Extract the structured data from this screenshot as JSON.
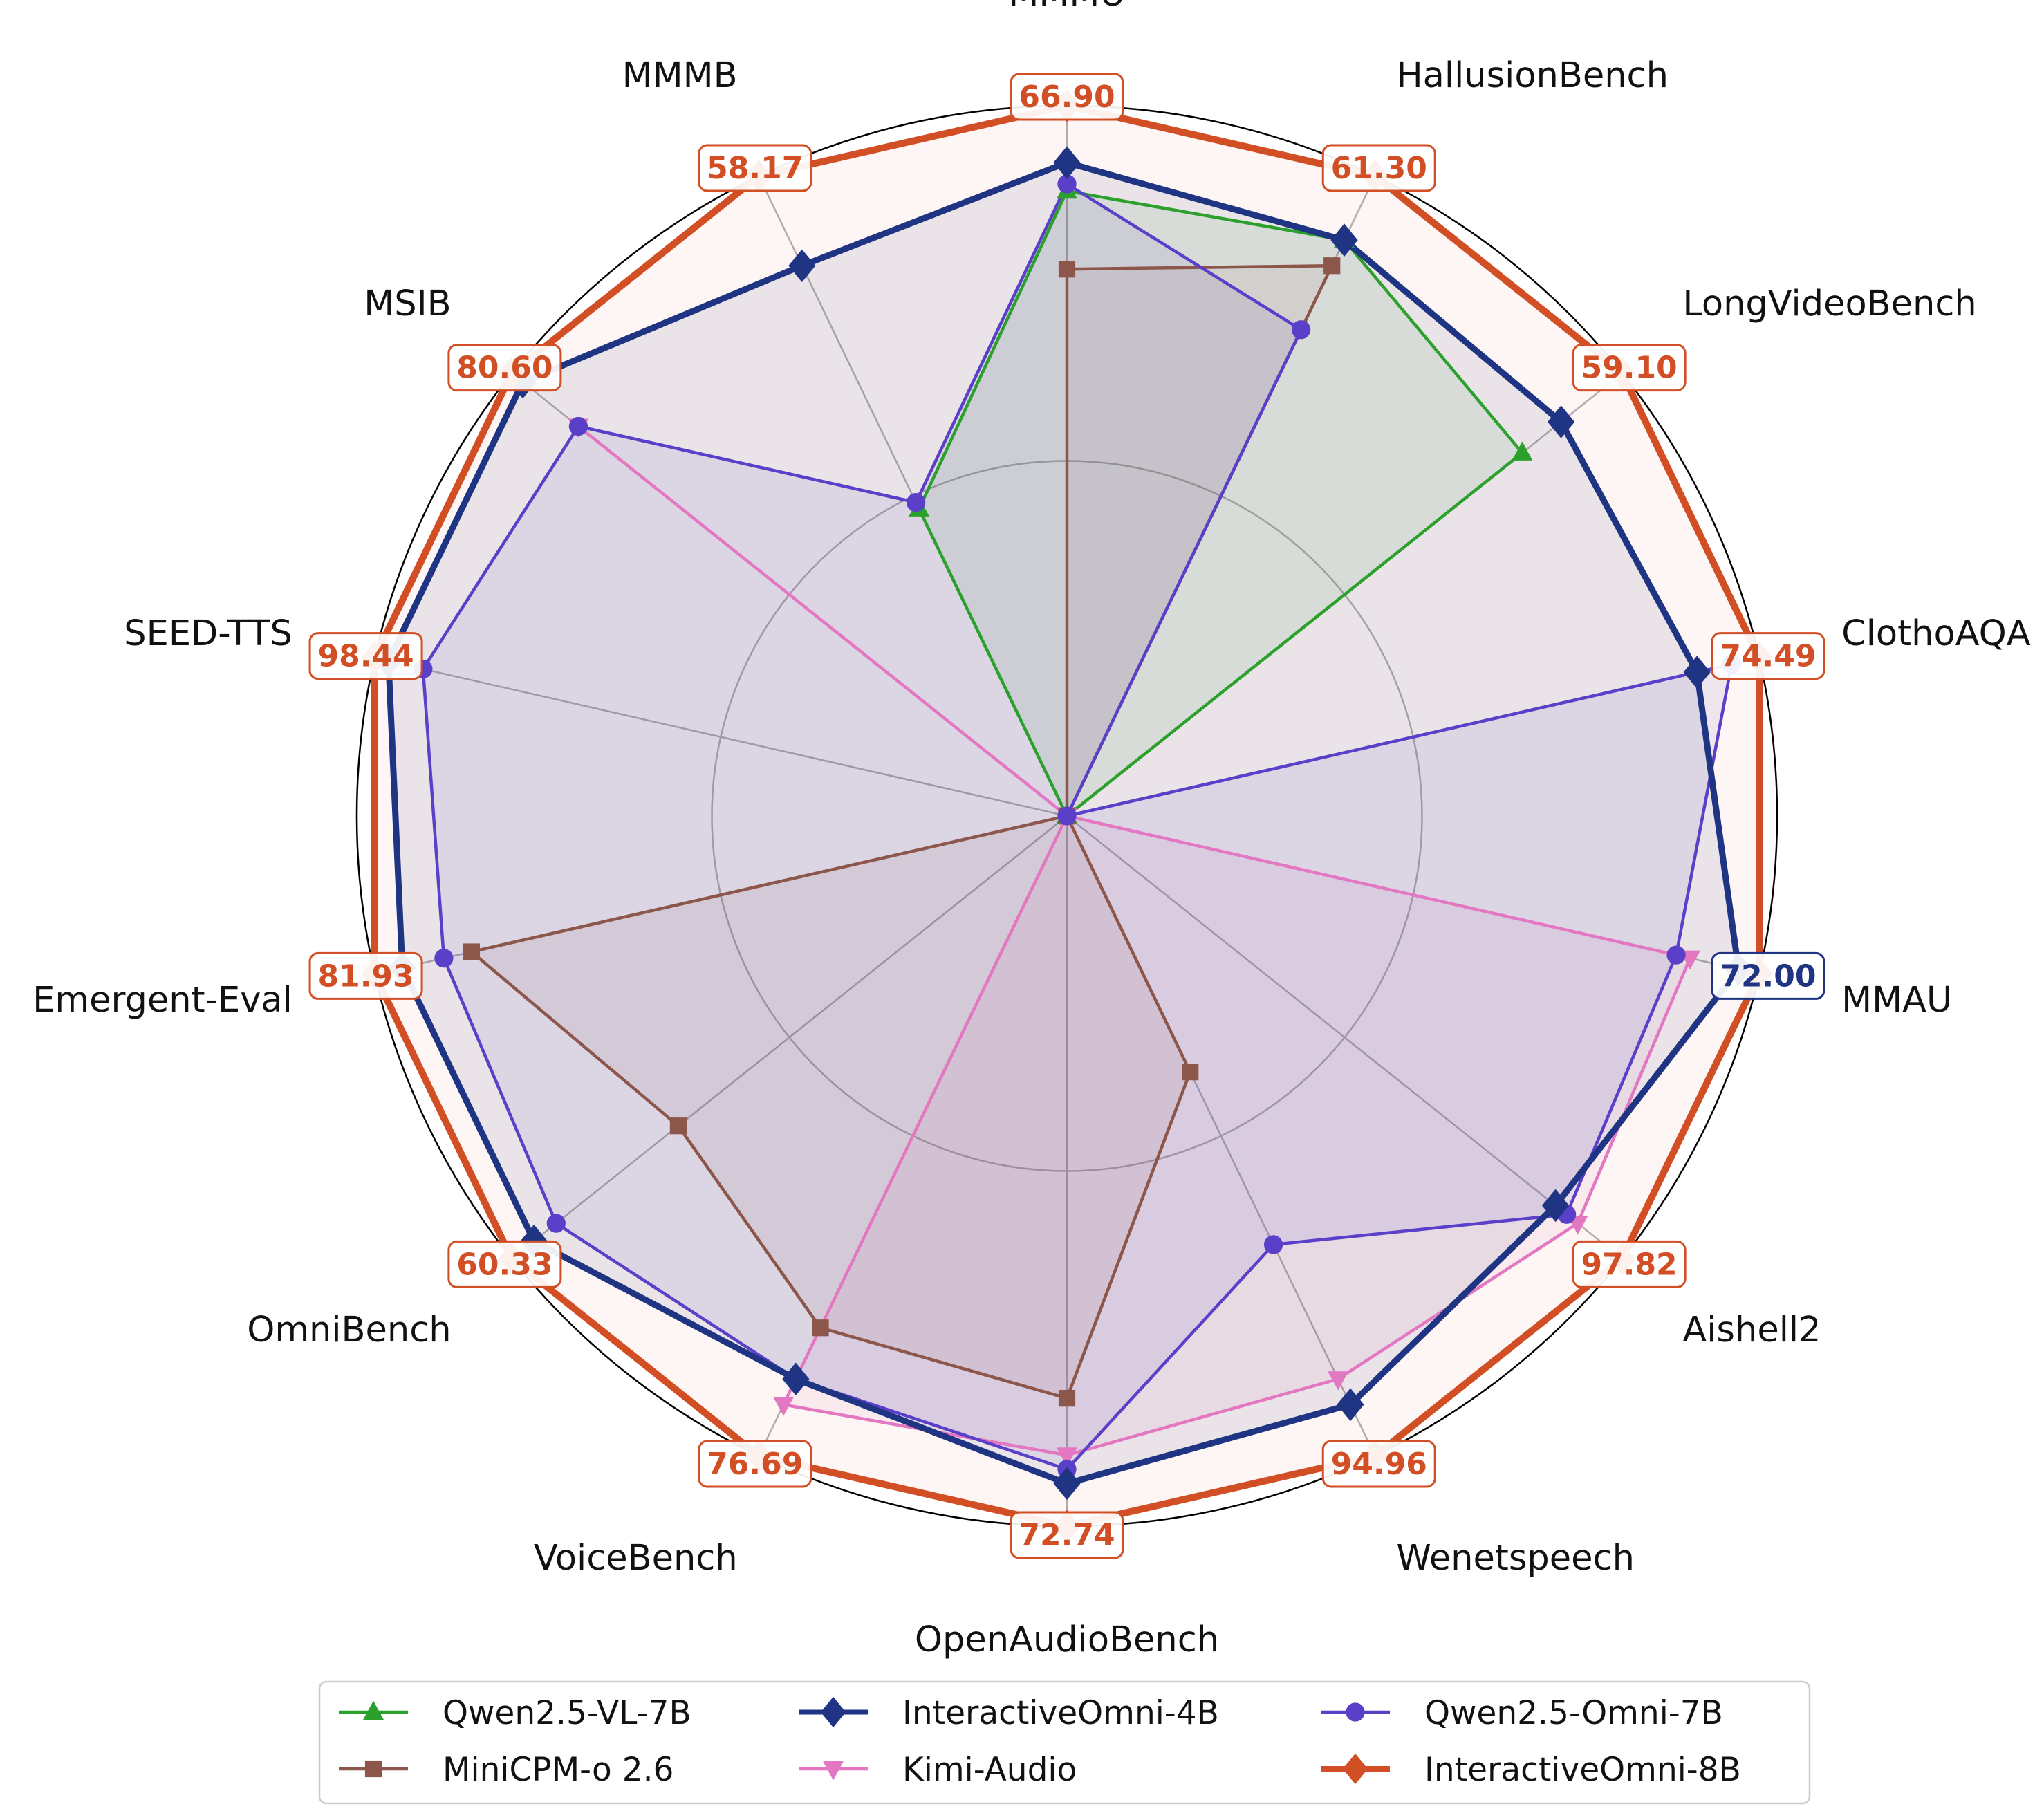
{
  "chart_data": {
    "type": "radar",
    "axes": [
      "MMMU",
      "HallusionBench",
      "LongVideoBench",
      "ClothoAQA",
      "MMAU",
      "Aishell2",
      "Wenetspeech",
      "OpenAudioBench",
      "VoiceBench",
      "OmniBench",
      "Emergent-Eval",
      "SEED-TTS",
      "MSIB",
      "MMMB"
    ],
    "highlight_labels": [
      "66.90",
      "61.30",
      "59.10",
      "74.49",
      "72.00",
      "97.82",
      "94.96",
      "72.74",
      "76.69",
      "60.33",
      "81.93",
      "98.44",
      "80.60",
      "58.17"
    ],
    "radial_range": [
      0,
      1
    ],
    "gridlines": [
      0.5,
      1.0
    ],
    "legend_position": "bottom",
    "series": [
      {
        "name": "Qwen2.5-VL-7B",
        "color": "#2ca02c",
        "marker": "triangle-up",
        "values": [
          0.88,
          0.9,
          0.82,
          0,
          0,
          0,
          0,
          0,
          0,
          0,
          0,
          0,
          0,
          0.48
        ]
      },
      {
        "name": "Kimi-Audio",
        "color": "#e377c2",
        "marker": "triangle-down",
        "values": [
          0,
          0,
          0,
          0,
          0.9,
          0.92,
          0.88,
          0.9,
          0.92,
          0,
          0,
          0,
          0.88,
          0
        ]
      },
      {
        "name": "MiniCPM-o 2.6",
        "color": "#8c564b",
        "marker": "square",
        "values": [
          0.77,
          0.86,
          0,
          0,
          0,
          0,
          0.4,
          0.82,
          0.8,
          0.7,
          0.86,
          0,
          0,
          0
        ]
      },
      {
        "name": "Qwen2.5-Omni-7B",
        "color": "#5a3fc9",
        "marker": "circle",
        "values": [
          0.89,
          0.76,
          0,
          0.96,
          0.88,
          0.9,
          0.67,
          0.92,
          0.88,
          0.92,
          0.9,
          0.93,
          0.88,
          0.49
        ]
      },
      {
        "name": "InteractiveOmni-4B",
        "color": "#1f3584",
        "marker": "diamond",
        "values": [
          0.92,
          0.9,
          0.89,
          0.91,
          0.97,
          0.88,
          0.92,
          0.94,
          0.88,
          0.96,
          0.96,
          0.98,
          0.98,
          0.86
        ]
      },
      {
        "name": "InteractiveOmni-8B",
        "color": "#d24e24",
        "marker": "diamond",
        "values": [
          1,
          1,
          1,
          1,
          1,
          1,
          1,
          1,
          1,
          1,
          1,
          1,
          1,
          1
        ]
      }
    ]
  }
}
